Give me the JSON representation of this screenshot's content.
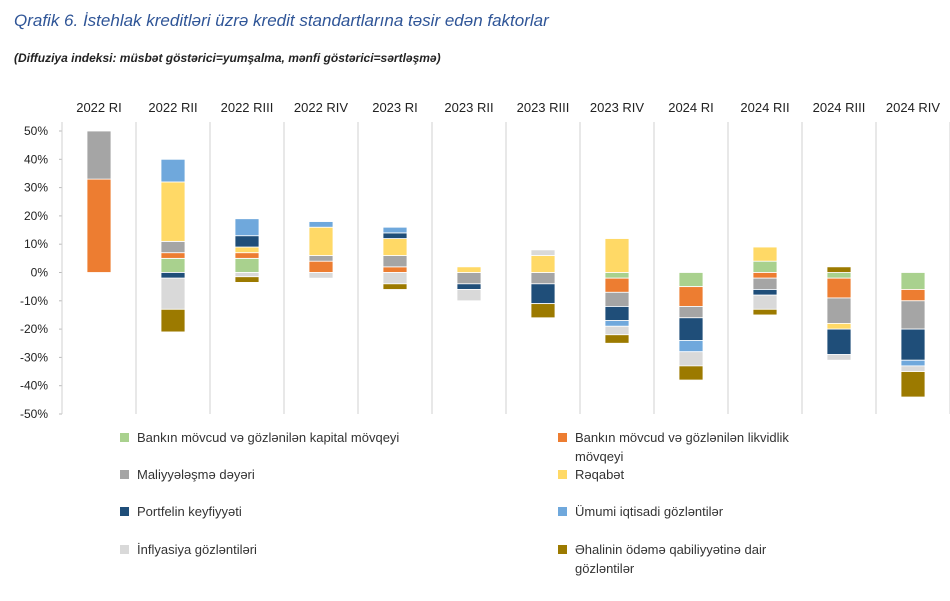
{
  "chart_data": {
    "type": "stacked_bar",
    "title": "Qrafik 6. İstehlak kreditləri üzrə kredit standartlarına təsir edən faktorlar",
    "subtitle": "(Diffuziya indeksi: müsbət göstərici=yumşalma, mənfi göstərici=sərtləşmə)",
    "categories": [
      "2022 RI",
      "2022 RII",
      "2022 RIII",
      "2022 RIV",
      "2023 RI",
      "2023 RII",
      "2023 RIII",
      "2023 RIV",
      "2024 RI",
      "2024 RII",
      "2024 RIII",
      "2024 RIV"
    ],
    "ylim": [
      -50,
      50
    ],
    "yticks": [
      {
        "value": -50,
        "label": "-50%"
      },
      {
        "value": -40,
        "label": "-40%"
      },
      {
        "value": -30,
        "label": "-30%"
      },
      {
        "value": -20,
        "label": "-20%"
      },
      {
        "value": -10,
        "label": "-10%"
      },
      {
        "value": 0,
        "label": "0%"
      },
      {
        "value": 10,
        "label": "10%"
      },
      {
        "value": 20,
        "label": "20%"
      },
      {
        "value": 30,
        "label": "30%"
      },
      {
        "value": 40,
        "label": "40%"
      },
      {
        "value": 50,
        "label": "50%"
      }
    ],
    "series": [
      {
        "name": "Bankın mövcud və gözlənilən kapital mövqeyi",
        "color": "#a9d18e",
        "values": [
          0,
          5,
          5,
          0,
          0,
          0,
          0,
          -2,
          -5,
          4,
          -2,
          -6
        ]
      },
      {
        "name": "Bankın mövcud və gözlənilən likvidlik mövqeyi",
        "color": "#ed7d31",
        "values": [
          33,
          2,
          2,
          4,
          2,
          0,
          0,
          -5,
          -7,
          -2,
          -7,
          -4
        ]
      },
      {
        "name": "Maliyyələşmə dəyəri",
        "color": "#a5a5a5",
        "values": [
          17,
          4,
          0,
          2,
          4,
          -4,
          -4,
          -5,
          -4,
          -4,
          -9,
          -10
        ]
      },
      {
        "name": "Rəqabət",
        "color": "#ffd966",
        "values": [
          0,
          21,
          2,
          10,
          6,
          2,
          6,
          12,
          0,
          5,
          -2,
          0
        ]
      },
      {
        "name": "Portfelin keyfiyyəti",
        "color": "#1f4e79",
        "values": [
          0,
          -2,
          4,
          0,
          2,
          -2,
          -7,
          -5,
          -8,
          -2,
          -9,
          -11
        ]
      },
      {
        "name": "Ümumi iqtisadi gözləntilər",
        "color": "#6fa8dc",
        "values": [
          0,
          8,
          6,
          2,
          2,
          0,
          0,
          -2,
          -4,
          0,
          0,
          -2
        ]
      },
      {
        "name": "İnflyasiya gözləntiləri",
        "color": "#d9d9d9",
        "values": [
          0,
          -11,
          -1.5,
          -2,
          -4,
          -4,
          2,
          -3,
          -5,
          -5,
          -2,
          -2
        ]
      },
      {
        "name": "Əhalinin ödəmə qabiliyyətinə dair gözləntilər",
        "color": "#9c7a00",
        "values": [
          0,
          -8,
          -2,
          0,
          -2,
          0,
          -5,
          -3,
          -5,
          -2,
          2,
          -9
        ]
      }
    ]
  }
}
